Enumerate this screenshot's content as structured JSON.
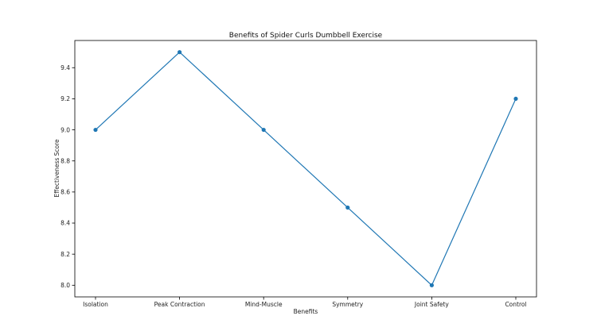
{
  "chart_data": {
    "type": "line",
    "title": "Benefits of Spider Curls Dumbbell Exercise",
    "xlabel": "Benefits",
    "ylabel": "Effectiveness Score",
    "categories": [
      "Isolation",
      "Peak Contraction",
      "Mind-Muscle",
      "Symmetry",
      "Joint Safety",
      "Control"
    ],
    "values": [
      9.0,
      9.5,
      9.0,
      8.5,
      8.0,
      9.2
    ],
    "ylim": [
      7.925,
      9.575
    ],
    "yticks": [
      "8.0",
      "8.2",
      "8.4",
      "8.6",
      "8.8",
      "9.0",
      "9.2",
      "9.4"
    ],
    "grid": false,
    "legend": "none",
    "colors": {
      "series": "#1f77b4",
      "axes": "#000000"
    }
  }
}
